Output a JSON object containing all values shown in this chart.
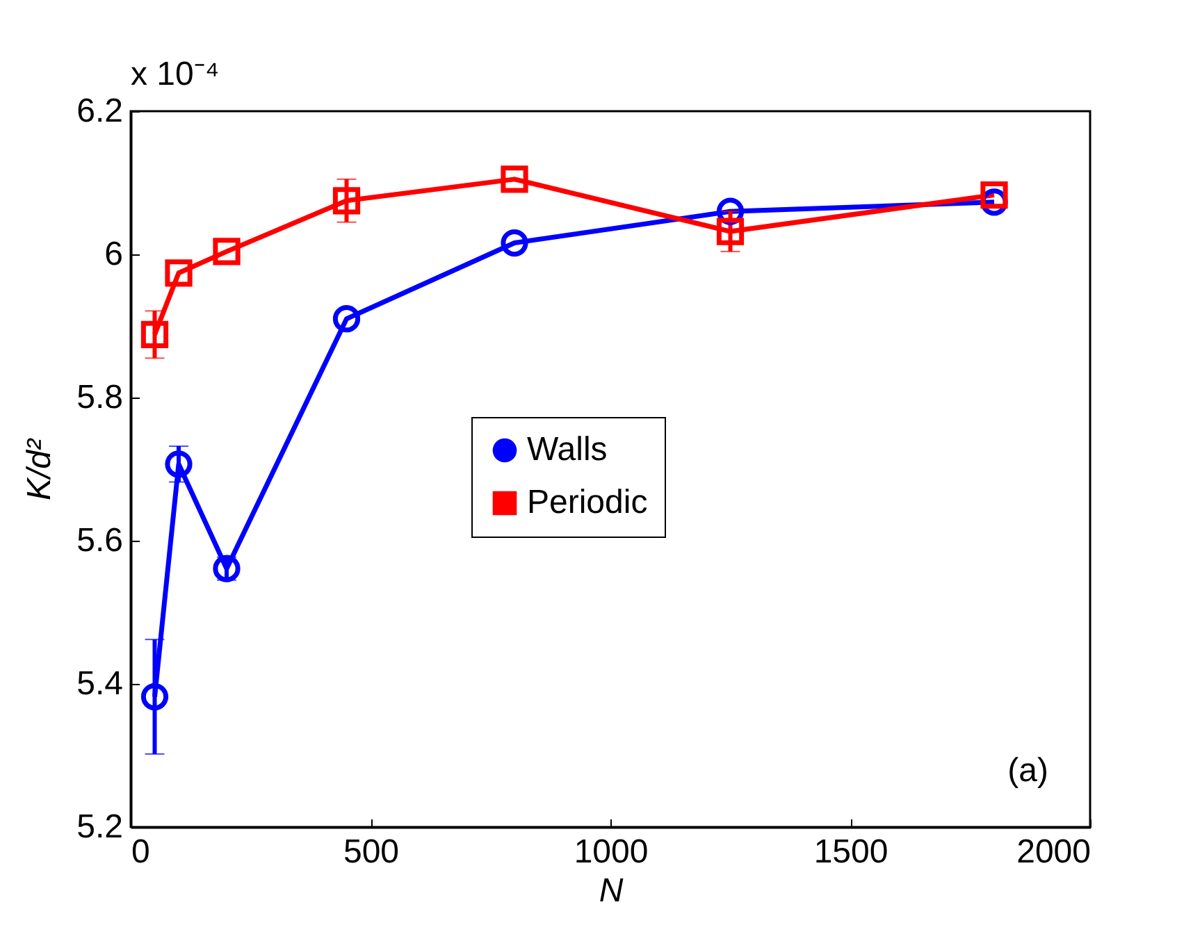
{
  "chart_data": {
    "type": "line",
    "xlabel": "N",
    "ylabel": "K/d²",
    "annotations": [
      "x 10⁻⁴",
      "(a)"
    ],
    "x": [
      50,
      100,
      200,
      450,
      800,
      1250,
      1800
    ],
    "series": [
      {
        "name": "Walls",
        "color": "#0000ff",
        "marker": "circle",
        "values": [
          5.382,
          5.707,
          5.561,
          5.91,
          6.016,
          6.06,
          6.073
        ],
        "errors": [
          0.08,
          0.025,
          0.016,
          null,
          null,
          null,
          null
        ]
      },
      {
        "name": "Periodic",
        "color": "#ff0000",
        "marker": "square",
        "values": [
          5.888,
          5.974,
          6.004,
          6.075,
          6.105,
          6.032,
          6.083
        ],
        "errors": [
          0.033,
          null,
          null,
          0.03,
          null,
          0.028,
          null
        ]
      }
    ],
    "xlim": [
      0,
      2000
    ],
    "xticks": [
      0,
      500,
      1000,
      1500,
      2000
    ],
    "ylim": [
      5.2,
      6.2
    ],
    "yticks": [
      5.2,
      5.4,
      5.6,
      5.8,
      6,
      6.2
    ],
    "grid": false,
    "legend": "center",
    "line_style": "solid"
  }
}
